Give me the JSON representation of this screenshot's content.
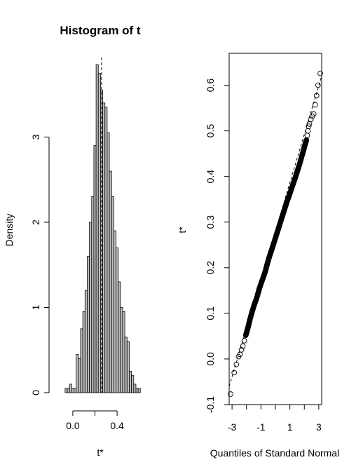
{
  "chart_data": [
    {
      "type": "bar",
      "title": "Histogram of t",
      "xlabel": "t*",
      "ylabel": "Density",
      "xlim": [
        -0.12,
        0.64
      ],
      "ylim": [
        0,
        3.95
      ],
      "xticks": [
        0.0,
        0.2,
        0.4
      ],
      "xtick_labels": [
        "0.0",
        "",
        "0.4"
      ],
      "yticks": [
        0,
        1,
        2,
        3
      ],
      "ytick_labels": [
        "0",
        "1",
        "2",
        "3"
      ],
      "bin_start": -0.07,
      "bin_width": 0.02,
      "values": [
        0.05,
        0.05,
        0.1,
        0.05,
        0.05,
        0.45,
        0.4,
        0.75,
        0.95,
        1.2,
        1.6,
        2.0,
        2.3,
        2.9,
        3.85,
        3.75,
        3.55,
        3.4,
        3.35,
        3.05,
        2.6,
        2.3,
        1.9,
        1.7,
        1.3,
        1.0,
        0.95,
        0.65,
        0.6,
        0.25,
        0.2,
        0.1,
        0.05,
        0.05
      ],
      "vline": 0.26,
      "grid": false
    },
    {
      "type": "scatter",
      "title": "",
      "xlabel": "Quantiles of Standard Normal",
      "ylabel": "t*",
      "xlim": [
        -3.2,
        3.2
      ],
      "ylim": [
        -0.1,
        0.67
      ],
      "xticks": [
        -3,
        -2,
        -1,
        0,
        1,
        2,
        3
      ],
      "xtick_labels": [
        "-3",
        "",
        "-1",
        "",
        "1",
        "",
        "3"
      ],
      "yticks": [
        -0.1,
        0.0,
        0.1,
        0.2,
        0.3,
        0.4,
        0.5,
        0.6
      ],
      "ytick_labels": [
        "-0.1",
        "0.0",
        "0.1",
        "0.2",
        "0.3",
        "0.4",
        "0.5",
        "0.6"
      ],
      "points": [
        [
          -3.1,
          -0.077
        ],
        [
          -2.85,
          -0.03
        ],
        [
          -2.7,
          -0.012
        ],
        [
          -2.55,
          0.005
        ],
        [
          -2.45,
          0.01
        ],
        [
          -2.35,
          0.02
        ],
        [
          -2.25,
          0.028
        ],
        [
          -2.15,
          0.04
        ],
        [
          -2.05,
          0.052
        ],
        [
          -1.95,
          0.063
        ],
        [
          -1.85,
          0.075
        ],
        [
          -1.75,
          0.088
        ],
        [
          -1.6,
          0.105
        ],
        [
          -1.45,
          0.12
        ],
        [
          -1.3,
          0.133
        ],
        [
          -1.15,
          0.15
        ],
        [
          -1.0,
          0.165
        ],
        [
          -0.85,
          0.178
        ],
        [
          -0.7,
          0.192
        ],
        [
          -0.55,
          0.21
        ],
        [
          -0.4,
          0.226
        ],
        [
          -0.25,
          0.24
        ],
        [
          -0.1,
          0.255
        ],
        [
          0.05,
          0.27
        ],
        [
          0.2,
          0.285
        ],
        [
          0.35,
          0.3
        ],
        [
          0.5,
          0.315
        ],
        [
          0.65,
          0.33
        ],
        [
          0.8,
          0.345
        ],
        [
          0.95,
          0.358
        ],
        [
          1.1,
          0.372
        ],
        [
          1.25,
          0.386
        ],
        [
          1.4,
          0.4
        ],
        [
          1.55,
          0.415
        ],
        [
          1.7,
          0.43
        ],
        [
          1.85,
          0.447
        ],
        [
          1.95,
          0.458
        ],
        [
          2.05,
          0.47
        ],
        [
          2.15,
          0.48
        ],
        [
          2.2,
          0.49
        ],
        [
          2.25,
          0.5
        ],
        [
          2.3,
          0.51
        ],
        [
          2.35,
          0.515
        ],
        [
          2.45,
          0.525
        ],
        [
          2.55,
          0.532
        ],
        [
          2.65,
          0.537
        ],
        [
          2.75,
          0.557
        ],
        [
          2.85,
          0.577
        ],
        [
          2.95,
          0.6
        ],
        [
          3.1,
          0.626
        ]
      ],
      "qq_line": [
        [
          -3.2,
          -0.06
        ],
        [
          3.2,
          0.62
        ]
      ],
      "grid": false
    }
  ]
}
